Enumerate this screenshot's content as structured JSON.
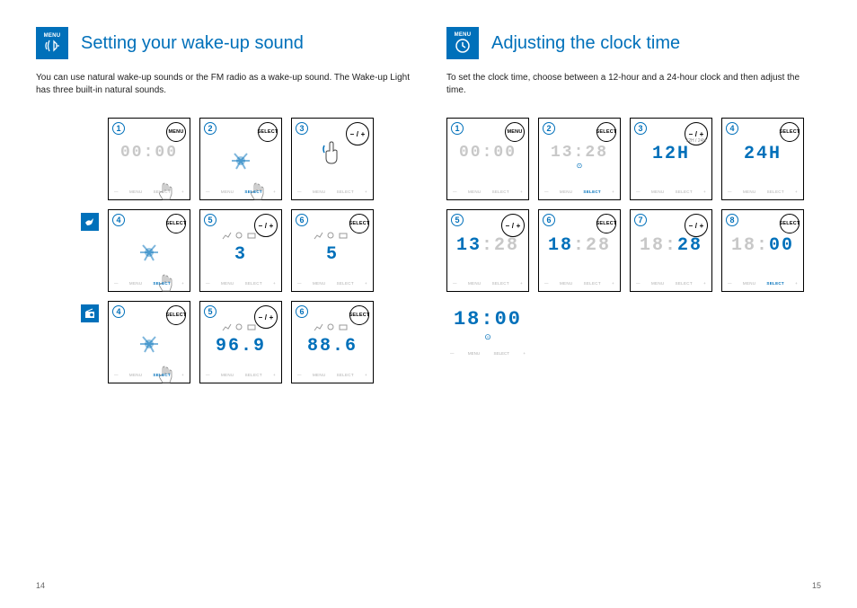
{
  "left": {
    "header_icon_label": "MENU",
    "title": "Setting your wake-up sound",
    "body": "You can use natural wake-up sounds or the FM radio as a wake-up sound. The Wake-up Light has three built-in natural sounds.",
    "page_number": "14",
    "rows": [
      {
        "icon": null,
        "panels": [
          {
            "num": "1",
            "btn": "MENU",
            "btn_size": "sm",
            "display": "00:00",
            "display_style": "dim",
            "finger": true,
            "bottom_highlight": null
          },
          {
            "num": "2",
            "btn": "SELECT",
            "btn_size": "sm",
            "display": "",
            "splash": true,
            "finger": true,
            "bottom_highlight": "SELECT"
          },
          {
            "num": "3",
            "btn": "− / +",
            "btn_size": "lg",
            "display": "",
            "hand": true,
            "bottom_highlight": null
          }
        ]
      },
      {
        "icon": "bird",
        "panels": [
          {
            "num": "4",
            "btn": "SELECT",
            "btn_size": "sm",
            "display": "",
            "splash": true,
            "finger": true,
            "bottom_highlight": "SELECT"
          },
          {
            "num": "5",
            "btn": "− / +",
            "btn_size": "lg",
            "display": "3",
            "display_style": "active",
            "icons_row": true,
            "bottom_highlight": null
          },
          {
            "num": "6",
            "btn": "SELECT",
            "btn_size": "sm",
            "display": "5",
            "display_style": "active",
            "icons_row": true,
            "bottom_highlight": null
          }
        ]
      },
      {
        "icon": "radio",
        "panels": [
          {
            "num": "4",
            "btn": "SELECT",
            "btn_size": "sm",
            "display": "",
            "splash": true,
            "finger": true,
            "bottom_highlight": "SELECT"
          },
          {
            "num": "5",
            "btn": "− / +",
            "btn_size": "lg",
            "display": "96.9",
            "display_style": "active",
            "icons_row": true,
            "bottom_highlight": null
          },
          {
            "num": "6",
            "btn": "SELECT",
            "btn_size": "sm",
            "display": "88.6",
            "display_style": "active",
            "icons_row": true,
            "bottom_highlight": null
          }
        ]
      }
    ]
  },
  "right": {
    "header_icon_label": "MENU",
    "title": "Adjusting the clock time",
    "body": "To set the clock time, choose between a 12-hour and a 24-hour clock and then adjust the time.",
    "page_number": "15",
    "rows": [
      {
        "panels": [
          {
            "num": "1",
            "btn": "MENU",
            "btn_size": "sm",
            "display": "00:00",
            "display_style": "dim",
            "bottom_highlight": null
          },
          {
            "num": "2",
            "btn": "SELECT",
            "btn_size": "sm",
            "display": "13:28",
            "display_style": "dim",
            "sub_icon": "⊙",
            "bottom_highlight": "SELECT"
          },
          {
            "num": "3",
            "btn": "− / +",
            "btn_size": "lg",
            "display": "12H",
            "display_style": "active",
            "sub_label": "12H / 24H",
            "bottom_highlight": null
          },
          {
            "num": "4",
            "btn": "SELECT",
            "btn_size": "sm",
            "display": "24H",
            "display_style": "active",
            "bottom_highlight": null
          }
        ]
      },
      {
        "panels": [
          {
            "num": "5",
            "btn": "− / +",
            "btn_size": "lg",
            "display": "13:28",
            "display_style": "mixed",
            "mixed_active": "13",
            "mixed_dim": ":28",
            "bottom_highlight": null
          },
          {
            "num": "6",
            "btn": "SELECT",
            "btn_size": "sm",
            "display": "18:28",
            "display_style": "mixed",
            "mixed_active": "18",
            "mixed_dim": ":28",
            "bottom_highlight": null
          },
          {
            "num": "7",
            "btn": "− / +",
            "btn_size": "lg",
            "display": "18:28",
            "display_style": "mixed2",
            "mixed_dim": "18:",
            "mixed_active": "28",
            "bottom_highlight": null
          },
          {
            "num": "8",
            "btn": "SELECT",
            "btn_size": "sm",
            "display": "18:00",
            "display_style": "mixed2",
            "mixed_dim": "18:",
            "mixed_active": "00",
            "bottom_highlight": "SELECT"
          }
        ]
      }
    ],
    "result": {
      "display": "18:00",
      "sub": "⊙"
    }
  },
  "colors": {
    "accent": "#0070ba",
    "dim": "#c8c8c8"
  }
}
